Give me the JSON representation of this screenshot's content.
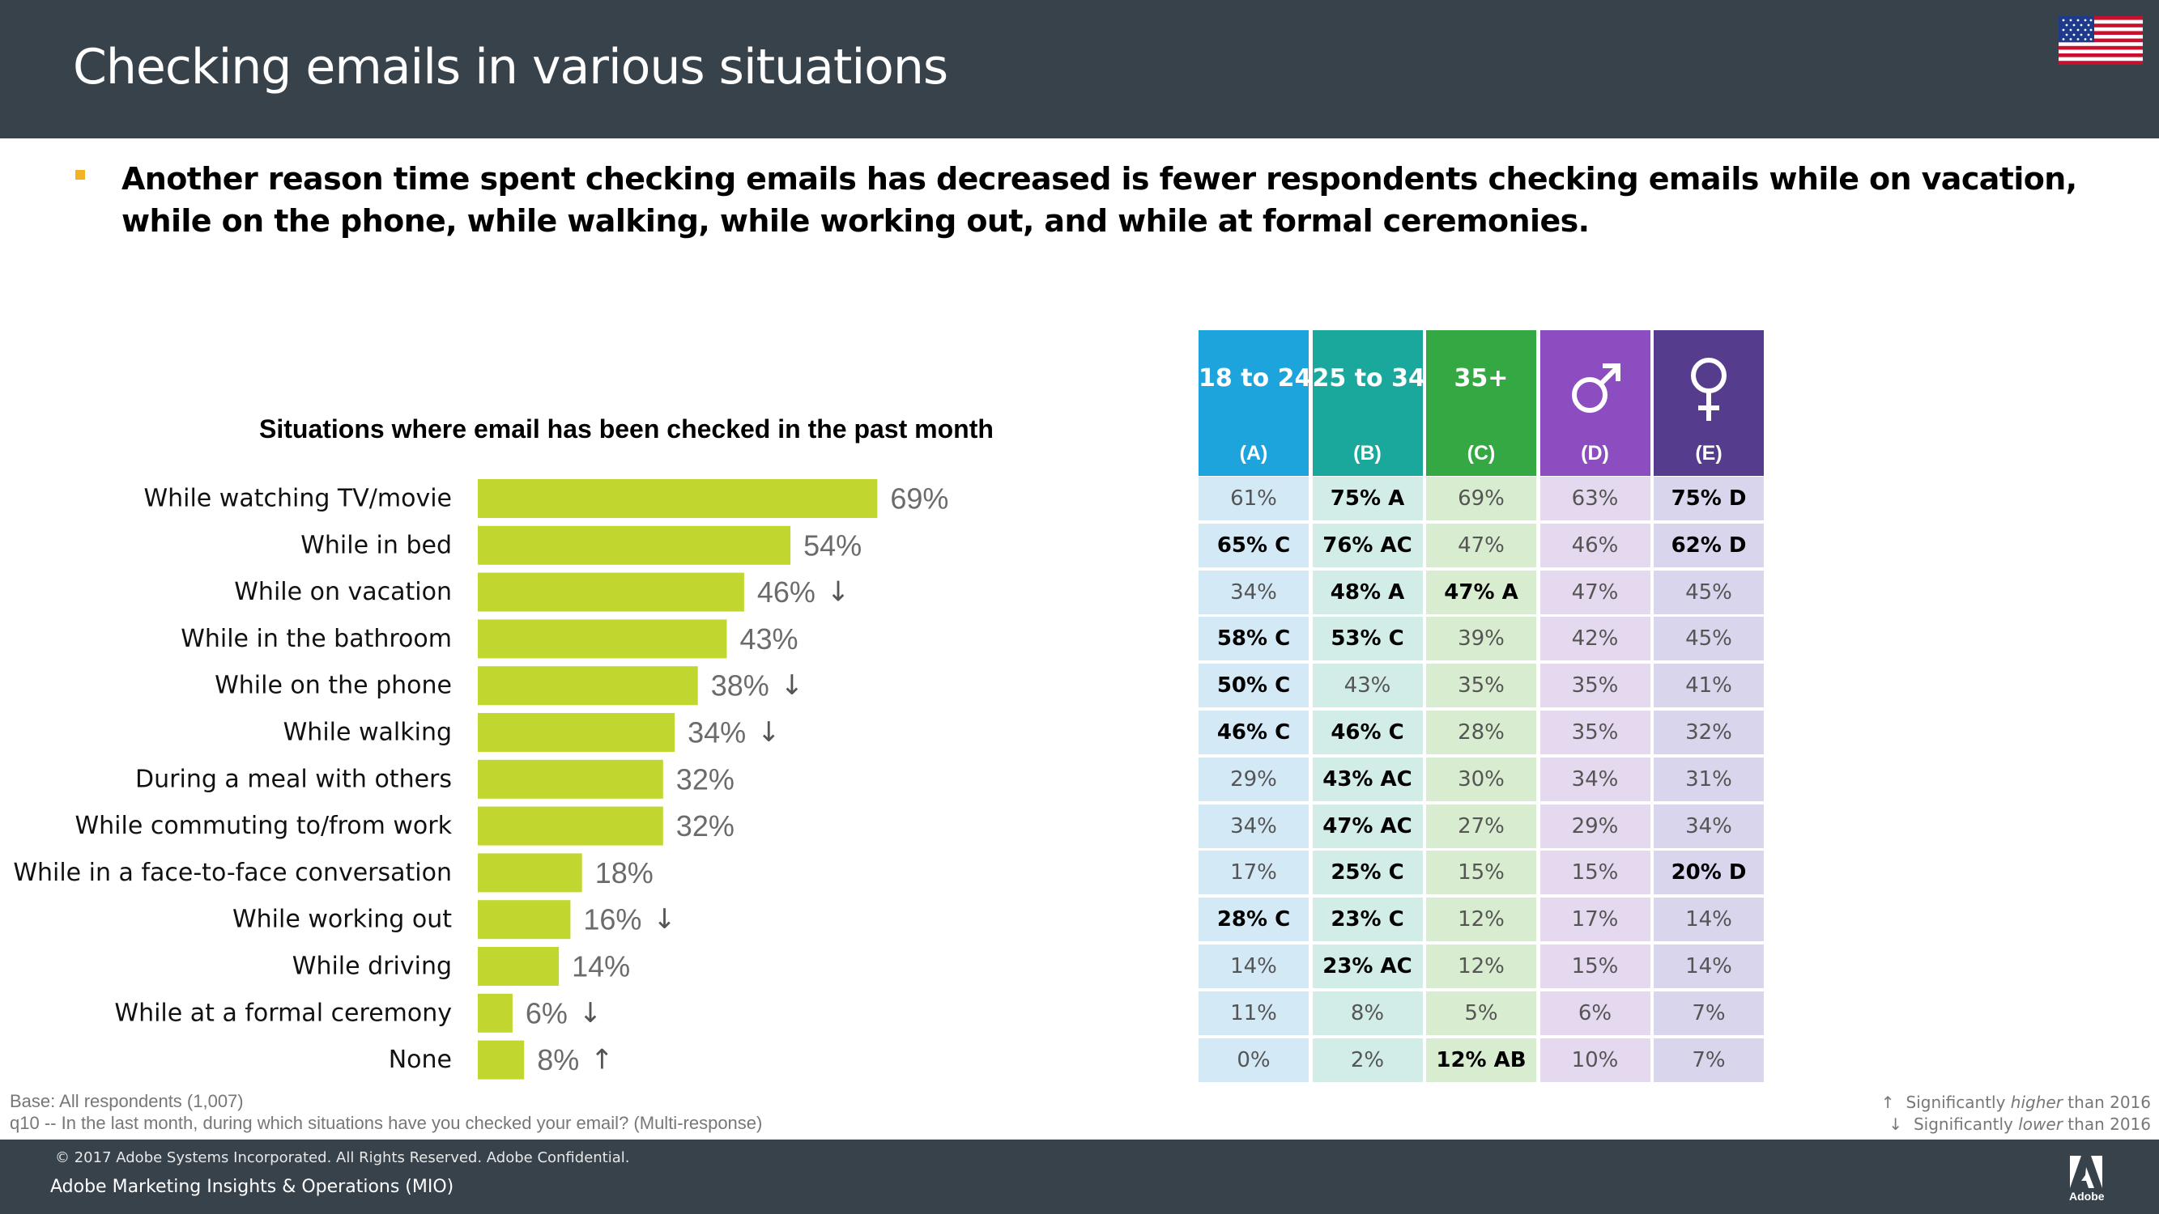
{
  "page": {
    "title": "Checking emails in various situations",
    "headline": "Another reason time spent checking emails has decreased is fewer respondents checking emails while on vacation, while on the phone, while walking, while working out, and while at formal ceremonies.",
    "flag_icon": "us-flag-icon"
  },
  "chart_data": {
    "type": "bar",
    "orientation": "horizontal",
    "title": "Situations where email has been checked in the past month",
    "categories": [
      "While watching TV/movie",
      "While in bed",
      "While on vacation",
      "While in the bathroom",
      "While on the phone",
      "While walking",
      "During a meal with others",
      "While commuting to/from work",
      "While in a face-to-face conversation",
      "While working out",
      "While driving",
      "While at a formal ceremony",
      "None"
    ],
    "values": [
      69,
      54,
      46,
      43,
      38,
      34,
      32,
      32,
      18,
      16,
      14,
      6,
      8
    ],
    "value_labels": [
      "69%",
      "54%",
      "46%",
      "43%",
      "38%",
      "34%",
      "32%",
      "32%",
      "18%",
      "16%",
      "14%",
      "6%",
      "8%"
    ],
    "significance": [
      "",
      "",
      "↓",
      "",
      "↓",
      "↓",
      "",
      "",
      "",
      "↓",
      "",
      "↓",
      "↑"
    ],
    "unit": "%",
    "xlim": [
      0,
      100
    ],
    "bar_color": "#c1d72f",
    "table": {
      "columns": [
        {
          "label": "18 to 24",
          "letter": "(A)",
          "icon": "",
          "color": "#1ea4dc",
          "cell_color": "#d4e9f6"
        },
        {
          "label": "25 to 34",
          "letter": "(B)",
          "icon": "",
          "color": "#1aa79c",
          "cell_color": "#d2ece7"
        },
        {
          "label": "35+",
          "letter": "(C)",
          "icon": "",
          "color": "#34a843",
          "cell_color": "#d8eccf"
        },
        {
          "label": "",
          "letter": "(D)",
          "icon": "male-symbol-icon",
          "color": "#8b4dbf",
          "cell_color": "#e4d9ef"
        },
        {
          "label": "",
          "letter": "(E)",
          "icon": "female-symbol-icon",
          "color": "#553c8d",
          "cell_color": "#d9d5ec"
        }
      ],
      "rows": [
        [
          "61%",
          "75% A",
          "69%",
          "63%",
          "75% D"
        ],
        [
          "65% C",
          "76% AC",
          "47%",
          "46%",
          "62% D"
        ],
        [
          "34%",
          "48% A",
          "47% A",
          "47%",
          "45%"
        ],
        [
          "58% C",
          "53% C",
          "39%",
          "42%",
          "45%"
        ],
        [
          "50% C",
          "43%",
          "35%",
          "35%",
          "41%"
        ],
        [
          "46% C",
          "46% C",
          "28%",
          "35%",
          "32%"
        ],
        [
          "29%",
          "43% AC",
          "30%",
          "34%",
          "31%"
        ],
        [
          "34%",
          "47% AC",
          "27%",
          "29%",
          "34%"
        ],
        [
          "17%",
          "25% C",
          "15%",
          "15%",
          "20% D"
        ],
        [
          "28% C",
          "23% C",
          "12%",
          "17%",
          "14%"
        ],
        [
          "14%",
          "23% AC",
          "12%",
          "15%",
          "14%"
        ],
        [
          "11%",
          "8%",
          "5%",
          "6%",
          "7%"
        ],
        [
          "0%",
          "2%",
          "12% AB",
          "10%",
          "7%"
        ]
      ]
    }
  },
  "notes": {
    "base": "Base: All respondents (1,007)",
    "question": "q10 -- In the last month, during which situations have you checked your email? (Multi-response)",
    "legend_up_arrow": "↑",
    "legend_up_pre": "Significantly ",
    "legend_up_em": "higher",
    "legend_up_post": " than 2016",
    "legend_down_arrow": "↓",
    "legend_down_pre": "Significantly ",
    "legend_down_em": "lower",
    "legend_down_post": " than 2016"
  },
  "footer": {
    "copyright": "© 2017 Adobe Systems Incorporated.  All Rights Reserved.  Adobe Confidential.",
    "team": "Adobe Marketing Insights & Operations (MIO)",
    "brand": "Adobe",
    "logo_icon": "adobe-logo-icon"
  }
}
